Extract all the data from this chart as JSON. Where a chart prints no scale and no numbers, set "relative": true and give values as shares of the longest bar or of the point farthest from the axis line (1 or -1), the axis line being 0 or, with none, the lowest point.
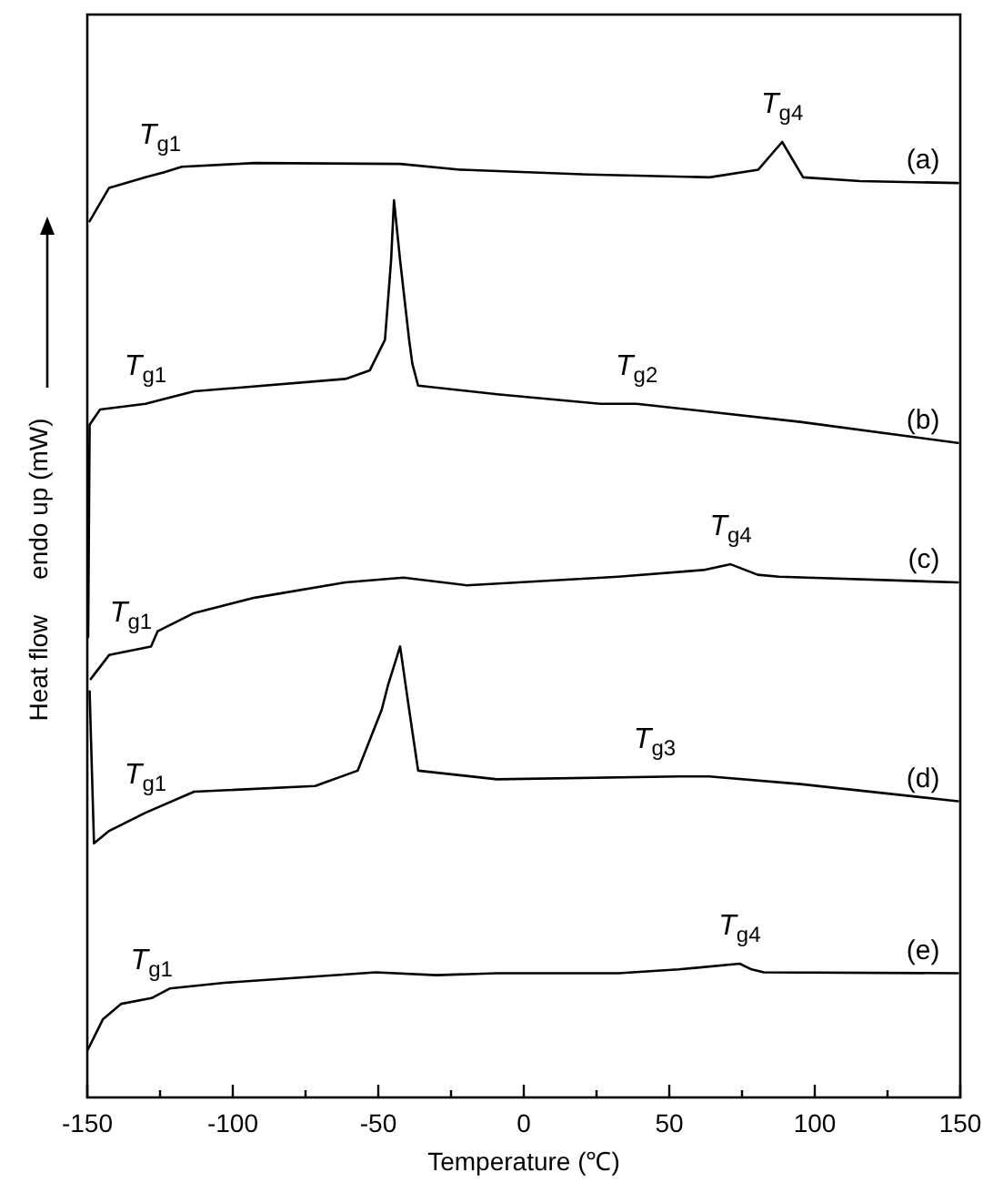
{
  "chart_data": {
    "type": "line",
    "relative": true,
    "xlabel": "Temperature (℃)",
    "ylabel": "Heat flow     endo up (mW)",
    "xlim": [
      -150,
      150
    ],
    "xticks": [
      -150,
      {
        "value": -125,
        "label": null
      },
      -100,
      {
        "value": -75,
        "label": null
      },
      -50,
      {
        "value": -25,
        "label": null
      },
      0,
      {
        "value": 25,
        "label": null
      },
      50,
      {
        "value": 75,
        "label": null
      },
      100,
      {
        "value": 125,
        "label": null
      },
      150
    ],
    "grid": false,
    "marker": "none",
    "line_style": "solid",
    "series": [
      {
        "name": "(a)",
        "color": "#000000",
        "x": [
          -149.2,
          -142.5,
          -130,
          -123.8,
          -117.5,
          -92.5,
          -42.5,
          -21.9,
          21.9,
          63.8,
          80.6,
          88.8,
          96,
          115.6,
          149.2
        ],
        "values": [
          0.917,
          0.952,
          0.963,
          0.968,
          0.974,
          0.978,
          0.977,
          0.971,
          0.966,
          0.963,
          0.971,
          1,
          0.963,
          0.959,
          0.957
        ]
      },
      {
        "name": "(b)",
        "color": "#000000",
        "x": [
          -149.7,
          -149.2,
          -145.6,
          -130,
          -113.3,
          -61.3,
          -52.9,
          -47.7,
          -45.6,
          -44.6,
          -42.5,
          -39.4,
          -38.3,
          -36.3,
          -9.2,
          26.3,
          38.8,
          95,
          149.2
        ],
        "values": [
          0.482,
          0.704,
          0.72,
          0.726,
          0.739,
          0.752,
          0.761,
          0.793,
          0.876,
          0.939,
          0.876,
          0.793,
          0.768,
          0.745,
          0.736,
          0.726,
          0.726,
          0.707,
          0.685
        ]
      },
      {
        "name": "(c)",
        "color": "#000000",
        "x": [
          -148.8,
          -142.5,
          -128.1,
          -125.8,
          -113.3,
          -92.5,
          -61.3,
          -41.4,
          -19.6,
          32.5,
          61.7,
          71.1,
          80.4,
          87.7,
          149.2
        ],
        "values": [
          0.438,
          0.463,
          0.472,
          0.488,
          0.507,
          0.523,
          0.539,
          0.544,
          0.536,
          0.545,
          0.552,
          0.558,
          0.547,
          0.545,
          0.539
        ]
      },
      {
        "name": "(d)",
        "color": "#000000",
        "x": [
          -149.2,
          -147.7,
          -142.5,
          -130,
          -113.3,
          -71.7,
          -57.1,
          -48.8,
          -46.7,
          -42.5,
          -39.4,
          -36.3,
          -9.2,
          53.3,
          63.8,
          95,
          149.2
        ],
        "values": [
          0.425,
          0.266,
          0.279,
          0.298,
          0.32,
          0.326,
          0.342,
          0.406,
          0.431,
          0.472,
          0.406,
          0.342,
          0.333,
          0.336,
          0.336,
          0.328,
          0.31
        ]
      },
      {
        "name": "(e)",
        "color": "#000000",
        "x": [
          -149.8,
          -144.6,
          -138.3,
          -127.9,
          -121.7,
          -102.9,
          -50.8,
          -30,
          -9.2,
          32.5,
          53.3,
          74.2,
          78.3,
          82.5,
          149.2
        ],
        "values": [
          0.05,
          0.082,
          0.098,
          0.104,
          0.114,
          0.12,
          0.131,
          0.128,
          0.13,
          0.13,
          0.134,
          0.14,
          0.134,
          0.131,
          0.13
        ]
      }
    ],
    "annotations": [
      {
        "text": "T$_{g1}$",
        "x": -125,
        "y": 0.968
      },
      {
        "text": "T$_{g4}$",
        "x": 88.8,
        "y": 1
      },
      {
        "text": "T$_{g1}$",
        "x": -130,
        "y": 0.726
      },
      {
        "text": "T$_{g2}$",
        "x": 38.8,
        "y": 0.726
      },
      {
        "text": "T$_{g1}$",
        "x": -135,
        "y": 0.468
      },
      {
        "text": "T$_{g4}$",
        "x": 71.1,
        "y": 0.558
      },
      {
        "text": "T$_{g1}$",
        "x": -130,
        "y": 0.298
      },
      {
        "text": "T$_{g3}$",
        "x": 45,
        "y": 0.335
      },
      {
        "text": "T$_{g1}$",
        "x": -127.9,
        "y": 0.104
      },
      {
        "text": "T$_{g4}$",
        "x": 74.2,
        "y": 0.14
      }
    ]
  }
}
